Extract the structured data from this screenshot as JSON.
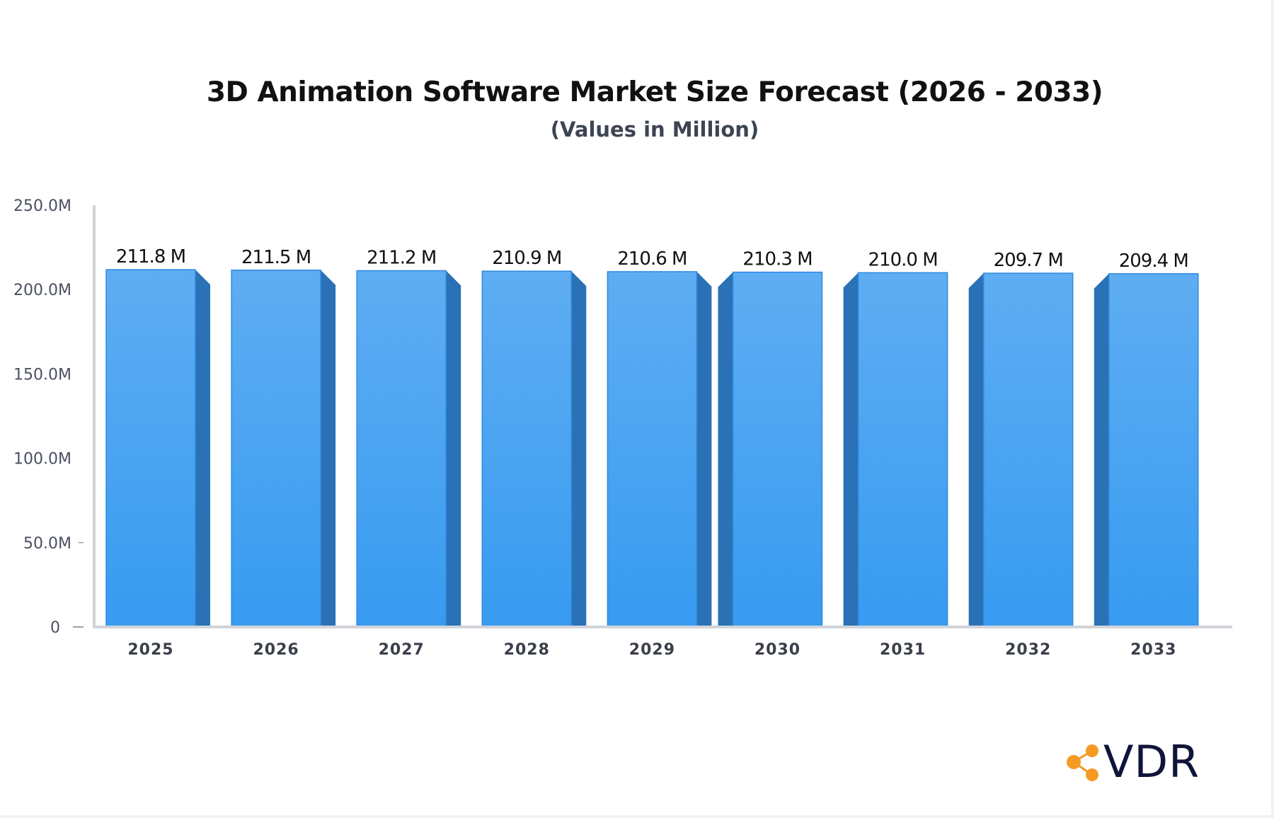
{
  "chart_data": {
    "type": "bar",
    "title": "3D Animation Software Market Size Forecast (2026 - 2033)",
    "subtitle": "(Values in Million)",
    "categories": [
      "2025",
      "2026",
      "2027",
      "2028",
      "2029",
      "2030",
      "2031",
      "2032",
      "2033"
    ],
    "values": [
      211.8,
      211.5,
      211.2,
      210.9,
      210.6,
      210.3,
      210.0,
      209.7,
      209.4
    ],
    "value_labels": [
      "211.8 M",
      "211.5 M",
      "211.2 M",
      "210.9 M",
      "210.6 M",
      "210.3 M",
      "210.0 M",
      "209.7 M",
      "209.4 M"
    ],
    "ylim": [
      0,
      250
    ],
    "yticks": [
      0,
      50,
      100,
      150,
      200,
      250
    ],
    "ytick_labels": [
      "0",
      "50.0M",
      "100.0M",
      "150.0M",
      "200.0M",
      "250.0M"
    ],
    "xlabel": "",
    "ylabel": "",
    "grid": false,
    "colors": {
      "bar_top": "#5fadf2",
      "bar_bottom": "#379bf0",
      "bar_side": "#2a72b5",
      "axis": "#d0d3da"
    }
  },
  "brand": {
    "logo_text": "VDR",
    "logo_color": "#f59a23",
    "text_color": "#10143a"
  }
}
